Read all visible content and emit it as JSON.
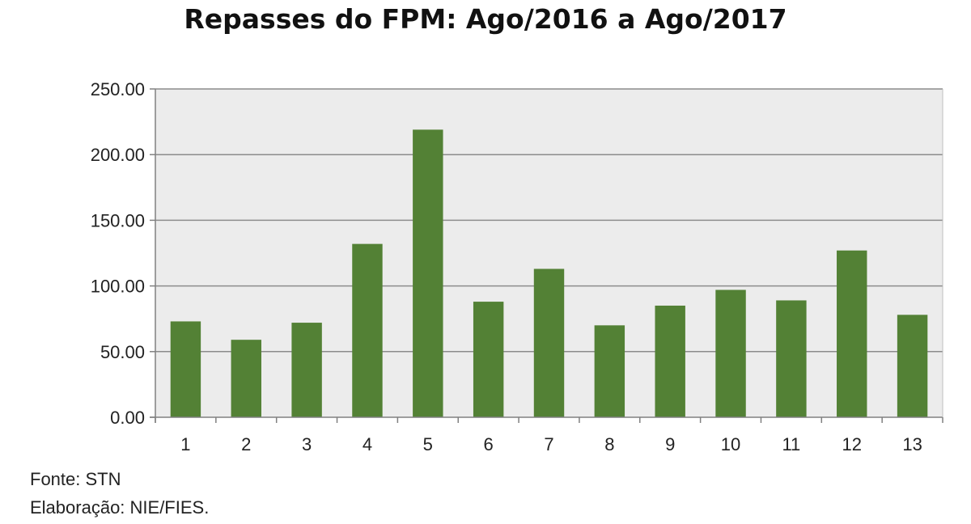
{
  "chart_data": {
    "type": "bar",
    "title": "Repasses do FPM: Ago/2016 a Ago/2017",
    "xlabel": "",
    "ylabel": "",
    "categories": [
      "1",
      "2",
      "3",
      "4",
      "5",
      "6",
      "7",
      "8",
      "9",
      "10",
      "11",
      "12",
      "13"
    ],
    "values": [
      73,
      59,
      72,
      132,
      219,
      88,
      113,
      70,
      85,
      97,
      89,
      127,
      78
    ],
    "ylim": [
      0,
      250
    ],
    "yticks": [
      "0.00",
      "50.00",
      "100.00",
      "150.00",
      "200.00",
      "250.00"
    ],
    "grid": true,
    "legend": "none",
    "colors": {
      "bar": "#538135",
      "plot_bg": "#ececec",
      "grid": "#8c8c8c",
      "axis": "#808080"
    }
  },
  "footnotes": {
    "source": "Fonte: STN",
    "credit": "Elaboração: NIE/FIES."
  }
}
